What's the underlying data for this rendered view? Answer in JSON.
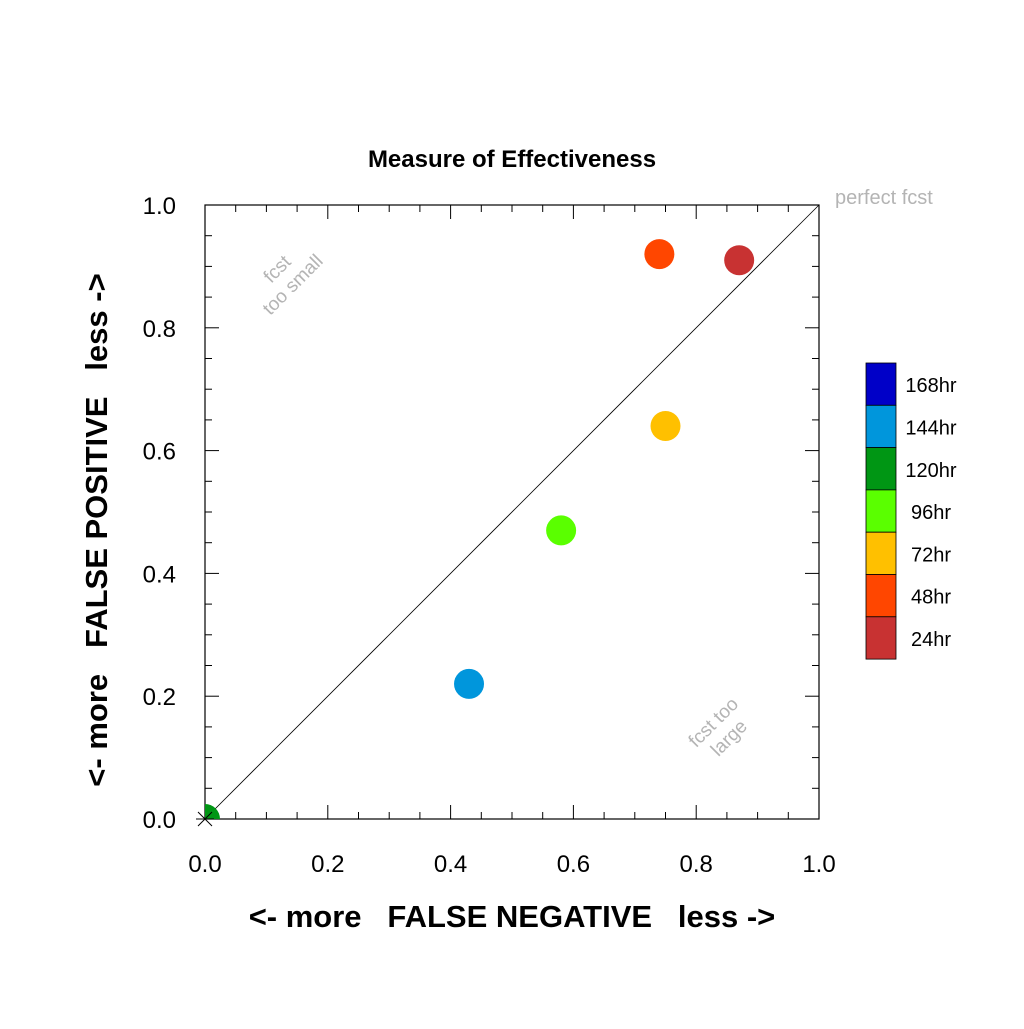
{
  "chart_data": {
    "type": "scatter",
    "title": "Measure of Effectiveness",
    "xlabel": "<- more   FALSE NEGATIVE   less ->",
    "ylabel": "<- more   FALSE POSITIVE   less ->",
    "xlim": [
      0.0,
      1.0
    ],
    "ylim": [
      0.0,
      1.0
    ],
    "xticks": [
      "0.0",
      "0.2",
      "0.4",
      "0.6",
      "0.8",
      "1.0"
    ],
    "yticks": [
      "0.0",
      "0.2",
      "0.4",
      "0.6",
      "0.8",
      "1.0"
    ],
    "grid": false,
    "legend_position": "right",
    "diagonal_line": true,
    "annotations": {
      "perfect": "perfect fcst",
      "small_line1": "fcst",
      "small_line2": "too small",
      "large_line1": "fcst too",
      "large_line2": "large"
    },
    "points": [
      {
        "name": "168hr",
        "x": null,
        "y": null,
        "color": "#0000c8"
      },
      {
        "name": "144hr",
        "x": 0.43,
        "y": 0.22,
        "color": "#0096dc"
      },
      {
        "name": "120hr",
        "x": 0.0,
        "y": 0.0,
        "color": "#009614"
      },
      {
        "name": "96hr",
        "x": 0.58,
        "y": 0.47,
        "color": "#5aff00"
      },
      {
        "name": "72hr",
        "x": 0.75,
        "y": 0.64,
        "color": "#ffc000"
      },
      {
        "name": "48hr",
        "x": 0.74,
        "y": 0.92,
        "color": "#ff4600"
      },
      {
        "name": "24hr",
        "x": 0.87,
        "y": 0.91,
        "color": "#c83232"
      }
    ]
  }
}
